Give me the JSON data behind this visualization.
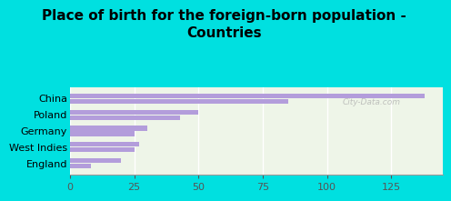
{
  "title": "Place of birth for the foreign-born population -\nCountries",
  "categories": [
    "China",
    "Poland",
    "Germany",
    "West Indies",
    "England"
  ],
  "values1": [
    138,
    50,
    30,
    27,
    20
  ],
  "values2": [
    85,
    43,
    25,
    25,
    8
  ],
  "bar_color": "#b39ddb",
  "fig_bg": "#00e0e0",
  "plot_bg": "#eef5e8",
  "xlim": [
    0,
    145
  ],
  "xticks": [
    0,
    25,
    50,
    75,
    100,
    125
  ],
  "watermark": "City-Data.com",
  "title_fontsize": 11,
  "tick_fontsize": 8,
  "label_fontsize": 8
}
